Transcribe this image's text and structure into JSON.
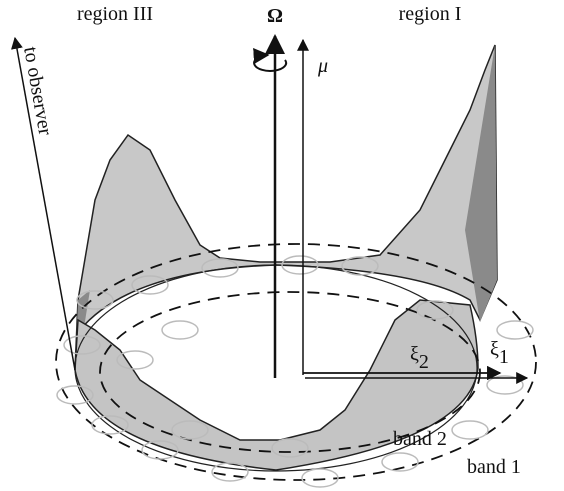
{
  "labels": {
    "region_left": "region III",
    "omega": "Ω",
    "region_right": "region I",
    "mu": "μ⃗",
    "observer": "to observer",
    "xi2": {
      "symbol": "ξ",
      "subscript": "2"
    },
    "xi1": {
      "symbol": "ξ",
      "subscript": "1"
    },
    "band2": "band 2",
    "band1": "band 1"
  }
}
